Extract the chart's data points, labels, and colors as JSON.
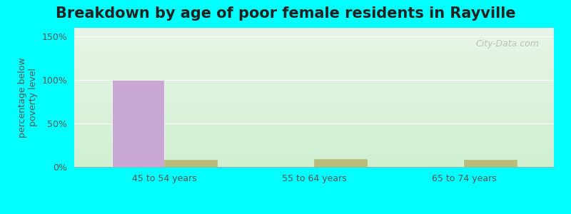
{
  "title": "Breakdown by age of poor female residents in Rayville",
  "ylabel": "percentage below\npoverty level",
  "categories": [
    "45 to 54 years",
    "55 to 64 years",
    "65 to 74 years"
  ],
  "rayville_values": [
    100,
    0,
    0
  ],
  "missouri_values": [
    8,
    9,
    8
  ],
  "rayville_color": "#c9a8d4",
  "missouri_color": "#b8bc7a",
  "bar_width": 0.35,
  "ylim": [
    0,
    160
  ],
  "yticks": [
    0,
    50,
    100,
    150
  ],
  "ytick_labels": [
    "0%",
    "50%",
    "100%",
    "150%"
  ],
  "outer_bg_color": "#00ffff",
  "title_fontsize": 15,
  "axis_label_fontsize": 9,
  "tick_fontsize": 9,
  "legend_fontsize": 10,
  "watermark_text": "City-Data.com"
}
